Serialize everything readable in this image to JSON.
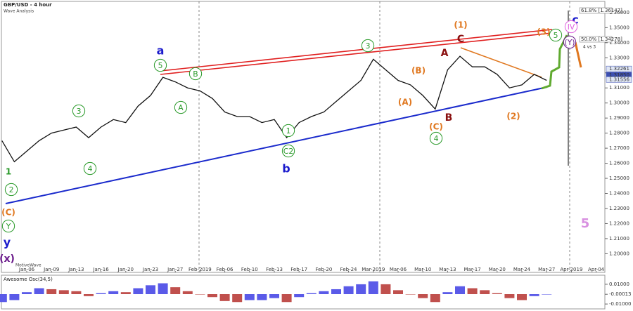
{
  "chart_data": {
    "type": "line",
    "title": "GBP/USD - 4 hour",
    "subtitle": "Wave Analysis",
    "watermark": "MotiveWave",
    "categories": [
      null,
      null,
      "Jan-06",
      null,
      "Jan-09",
      null,
      "Jan-13",
      null,
      "Jan-16",
      null,
      "Jan-20",
      null,
      "Jan-23",
      null,
      "Jan-27",
      null,
      "Feb-2019",
      null,
      "Feb-06",
      null,
      "Feb-10",
      null,
      "Feb-13",
      null,
      "Feb-17",
      null,
      "Feb-20",
      null,
      "Feb-24",
      null,
      "Mar-2019",
      null,
      "Mar-06",
      null,
      "Mar-10",
      null,
      "Mar-13",
      null,
      "Mar-17",
      null,
      "Mar-20",
      null,
      "Mar-24",
      null,
      "Mar-27",
      null,
      "Apr-2019",
      null,
      "Apr-04",
      null
    ],
    "series": [
      {
        "name": "GBP/USD",
        "color": "#111111",
        "values": [
          1.275,
          1.261,
          1.268,
          1.275,
          1.28,
          1.282,
          1.284,
          1.277,
          1.284,
          1.289,
          1.287,
          1.298,
          1.305,
          1.317,
          1.314,
          1.31,
          1.308,
          1.303,
          1.294,
          1.291,
          1.291,
          1.287,
          1.289,
          1.277,
          1.287,
          1.291,
          1.294,
          1.301,
          1.308,
          1.315,
          1.329,
          1.322,
          1.315,
          1.312,
          1.305,
          1.296,
          1.322,
          1.331,
          1.324,
          1.324,
          1.319,
          1.31,
          1.312,
          1.319,
          1.315,
          null,
          null,
          null,
          null,
          null
        ]
      }
    ],
    "ylim": [
      1.189,
      1.366
    ],
    "yticks": [
      {
        "value": 1.36,
        "label": "1.36000"
      },
      {
        "value": 1.35,
        "label": "1.35000"
      },
      {
        "value": 1.34,
        "label": "1.34000"
      },
      {
        "value": 1.33,
        "label": "1.33000"
      },
      {
        "value": 1.32,
        "label": "1.32000"
      },
      {
        "value": 1.31,
        "label": "1.31000"
      },
      {
        "value": 1.3,
        "label": "1.30000"
      },
      {
        "value": 1.29,
        "label": "1.29000"
      },
      {
        "value": 1.28,
        "label": "1.28000"
      },
      {
        "value": 1.27,
        "label": "1.27000"
      },
      {
        "value": 1.26,
        "label": "1.26000"
      },
      {
        "value": 1.25,
        "label": "1.25000"
      },
      {
        "value": 1.24,
        "label": "1.24000"
      },
      {
        "value": 1.23,
        "label": "1.23000"
      },
      {
        "value": 1.22,
        "label": "1.22000"
      },
      {
        "value": 1.21,
        "label": "1.21000"
      },
      {
        "value": 1.2,
        "label": "1.20000"
      }
    ],
    "price_tags": [
      {
        "value": 1.32261,
        "label": "1.32261",
        "color": "#dfe6f5"
      },
      {
        "value": 1.3185,
        "label": "1.31850",
        "color": "#3c4fb0"
      },
      {
        "value": 1.31556,
        "label": "1.31556",
        "color": "#dfe6f5"
      }
    ],
    "fib_labels": [
      "61.8% [1.36147]",
      "50.0% [1.34278]"
    ],
    "note": "4 vs 3",
    "annotations": [
      {
        "text": "a",
        "color": "#1a1acc",
        "circled": false
      },
      {
        "text": "b",
        "color": "#1a1acc",
        "circled": false
      },
      {
        "text": "c",
        "color": "#1a1acc",
        "circled": false
      },
      {
        "text": "y",
        "color": "#1a1acc",
        "circled": false
      },
      {
        "text": "(x)",
        "color": "#6a1a8a",
        "circled": false
      },
      {
        "text": "IV",
        "color": "#e060e0",
        "circled": true
      },
      {
        "text": "(Y)",
        "color": "#6a1a8a",
        "circled": true
      },
      {
        "text": "5",
        "color": "#d890e0",
        "circled": false
      },
      {
        "text": "(3)",
        "color": "#e07820",
        "circled": false
      },
      {
        "text": "5",
        "color": "#2a9a2a",
        "circled": true
      },
      {
        "text": "(1)",
        "color": "#e07820",
        "circled": false
      },
      {
        "text": "C",
        "color": "#8a1010",
        "circled": false
      },
      {
        "text": "A",
        "color": "#8a1010",
        "circled": false
      },
      {
        "text": "B",
        "color": "#8a1010",
        "circled": false
      },
      {
        "text": "(B)",
        "color": "#e07820",
        "circled": false
      },
      {
        "text": "(A)",
        "color": "#e07820",
        "circled": false
      },
      {
        "text": "(C)",
        "color": "#e07820",
        "circled": false
      },
      {
        "text": "4",
        "color": "#2a9a2a",
        "circled": true
      },
      {
        "text": "(2)",
        "color": "#e07820",
        "circled": false
      },
      {
        "text": "3",
        "color": "#2a9a2a",
        "circled": true
      },
      {
        "text": "5",
        "color": "#2a9a2a",
        "circled": true
      },
      {
        "text": "B",
        "color": "#2a9a2a",
        "circled": true
      },
      {
        "text": "A",
        "color": "#2a9a2a",
        "circled": true
      },
      {
        "text": "1",
        "color": "#2a9a2a",
        "circled": true
      },
      {
        "text": "C2",
        "color": "#2a9a2a",
        "circled": true
      },
      {
        "text": "3",
        "color": "#2a9a2a",
        "circled": true
      },
      {
        "text": "4",
        "color": "#2a9a2a",
        "circled": true
      },
      {
        "text": "1",
        "color": "#2a9a2a",
        "circled": false
      },
      {
        "text": "2",
        "color": "#2a9a2a",
        "circled": true
      },
      {
        "text": "(C)",
        "color": "#e07820",
        "circled": false
      },
      {
        "text": "Y",
        "color": "#2a9a2a",
        "circled": true
      }
    ],
    "oscillator": {
      "name": "Awesome Osc(34,5)",
      "up_color": "#5a5ae8",
      "down_color": "#c0504d",
      "values": [
        -0.008,
        -0.006,
        0.002,
        0.006,
        0.005,
        0.004,
        0.003,
        -0.002,
        0.001,
        0.003,
        0.002,
        0.006,
        0.009,
        0.011,
        0.007,
        0.003,
        0.0,
        -0.003,
        -0.007,
        -0.008,
        -0.006,
        -0.006,
        -0.004,
        -0.008,
        -0.003,
        0.001,
        0.003,
        0.005,
        0.008,
        0.01,
        0.013,
        0.01,
        0.004,
        0.0,
        -0.004,
        -0.008,
        0.002,
        0.008,
        0.006,
        0.004,
        0.001,
        -0.004,
        -0.006,
        -0.002,
        -0.00013,
        null,
        null,
        null,
        null,
        null
      ],
      "ylim": [
        -0.0135,
        0.0135
      ],
      "yticks": [
        {
          "value": 0.01,
          "label": "0.01000"
        },
        {
          "value": -0.00013,
          "label": "-0.00013"
        },
        {
          "value": -0.01,
          "label": "-0.01000"
        }
      ]
    }
  }
}
